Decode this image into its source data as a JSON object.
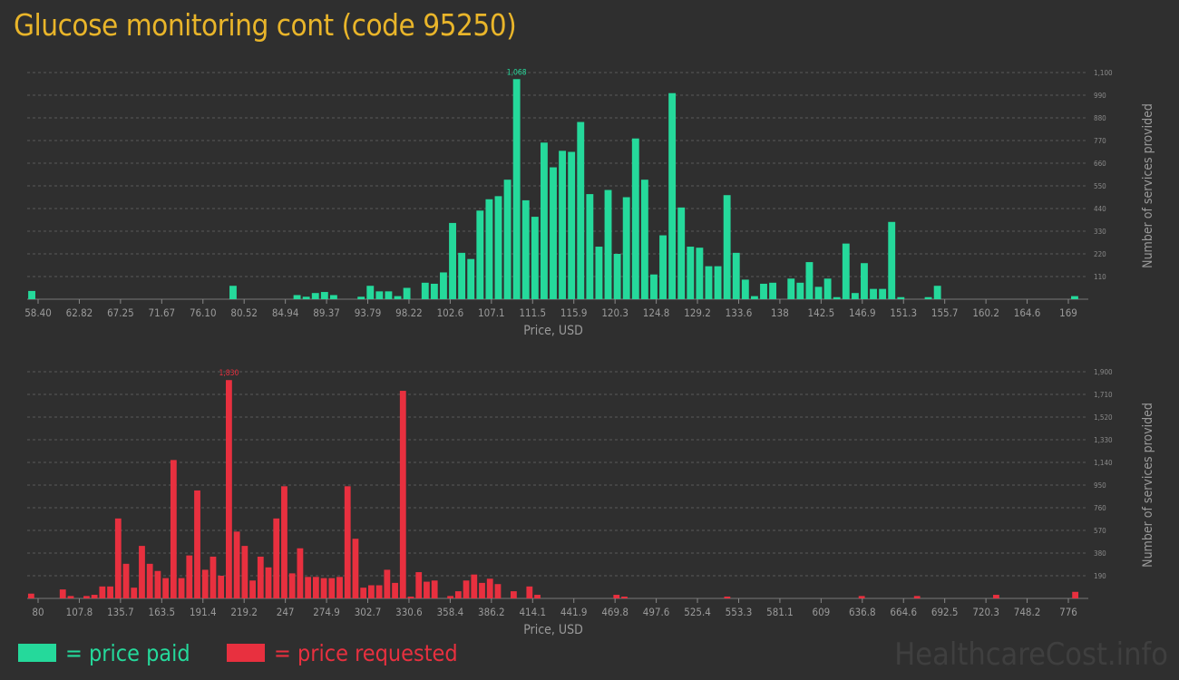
{
  "title": "Glucose monitoring cont (code 95250)",
  "colors": {
    "paid": "#25d99b",
    "requested": "#e8303f",
    "title": "#e9b52a",
    "grid": "#5a5a5a"
  },
  "legend": {
    "paid": "= price paid",
    "requested": "= price requested"
  },
  "watermark": "HealthcareCost.info",
  "chart_data": [
    {
      "type": "bar",
      "xlabel": "Price, USD",
      "ylabel": "Number of services provided",
      "peak_label": "1,068",
      "x_ticks": [
        "58.40",
        "62.82",
        "67.25",
        "71.67",
        "76.10",
        "80.52",
        "84.94",
        "89.37",
        "93.79",
        "98.22",
        "102.6",
        "107.1",
        "111.5",
        "115.9",
        "120.3",
        "124.8",
        "129.2",
        "133.6",
        "138",
        "142.5",
        "146.9",
        "151.3",
        "155.7",
        "160.2",
        "164.6",
        "169"
      ],
      "y_ticks": [
        110,
        220,
        330,
        440,
        550,
        660,
        770,
        880,
        990,
        1100
      ],
      "y_tick_labels": [
        "110",
        "220",
        "330",
        "440",
        "550",
        "660",
        "770",
        "880",
        "990",
        "1,100"
      ],
      "ylim": [
        0,
        1100
      ],
      "values": [
        40,
        0,
        0,
        0,
        0,
        0,
        0,
        0,
        0,
        0,
        0,
        0,
        0,
        0,
        0,
        0,
        0,
        0,
        0,
        0,
        0,
        0,
        65,
        0,
        0,
        0,
        0,
        0,
        0,
        20,
        12,
        30,
        35,
        20,
        0,
        0,
        12,
        65,
        38,
        38,
        15,
        55,
        0,
        80,
        75,
        130,
        370,
        225,
        195,
        430,
        485,
        500,
        580,
        1068,
        480,
        400,
        760,
        640,
        720,
        715,
        860,
        510,
        255,
        530,
        220,
        495,
        780,
        580,
        120,
        310,
        1000,
        445,
        255,
        250,
        160,
        160,
        505,
        225,
        95,
        15,
        75,
        80,
        0,
        100,
        80,
        180,
        60,
        100,
        10,
        270,
        30,
        175,
        50,
        50,
        375,
        10,
        0,
        0,
        10,
        65,
        0,
        0,
        0,
        0,
        0,
        0,
        0,
        0,
        0,
        0,
        0,
        0,
        0,
        0,
        15
      ],
      "bar_color": "#25d99b"
    },
    {
      "type": "bar",
      "xlabel": "Price, USD",
      "ylabel": "Number of services provided",
      "peak_label": "1,830",
      "x_ticks": [
        "80",
        "107.8",
        "135.7",
        "163.5",
        "191.4",
        "219.2",
        "247",
        "274.9",
        "302.7",
        "330.6",
        "358.4",
        "386.2",
        "414.1",
        "441.9",
        "469.8",
        "497.6",
        "525.4",
        "553.3",
        "581.1",
        "609",
        "636.8",
        "664.6",
        "692.5",
        "720.3",
        "748.2",
        "776"
      ],
      "y_ticks": [
        190,
        380,
        570,
        760,
        950,
        1140,
        1330,
        1520,
        1710,
        1900
      ],
      "y_tick_labels": [
        "190",
        "380",
        "570",
        "760",
        "950",
        "1,140",
        "1,330",
        "1,520",
        "1,710",
        "1,900"
      ],
      "ylim": [
        0,
        1900
      ],
      "values": [
        40,
        0,
        0,
        0,
        75,
        20,
        0,
        20,
        30,
        100,
        100,
        670,
        290,
        90,
        440,
        290,
        230,
        170,
        1160,
        170,
        360,
        905,
        240,
        350,
        190,
        1830,
        560,
        440,
        150,
        350,
        260,
        670,
        940,
        210,
        420,
        180,
        180,
        170,
        170,
        180,
        940,
        500,
        90,
        110,
        110,
        240,
        130,
        1740,
        15,
        220,
        140,
        150,
        0,
        20,
        60,
        150,
        200,
        130,
        165,
        120,
        0,
        60,
        0,
        100,
        30,
        0,
        0,
        0,
        0,
        0,
        0,
        0,
        0,
        0,
        30,
        15,
        0,
        0,
        0,
        0,
        0,
        0,
        0,
        0,
        0,
        0,
        0,
        0,
        15,
        0,
        0,
        0,
        0,
        0,
        0,
        0,
        0,
        0,
        0,
        0,
        0,
        0,
        0,
        0,
        0,
        20,
        0,
        0,
        0,
        0,
        0,
        0,
        20,
        0,
        0,
        0,
        0,
        0,
        0,
        0,
        0,
        0,
        30,
        0,
        0,
        0,
        0,
        0,
        0,
        0,
        0,
        0,
        55
      ],
      "bar_color": "#e8303f"
    }
  ]
}
